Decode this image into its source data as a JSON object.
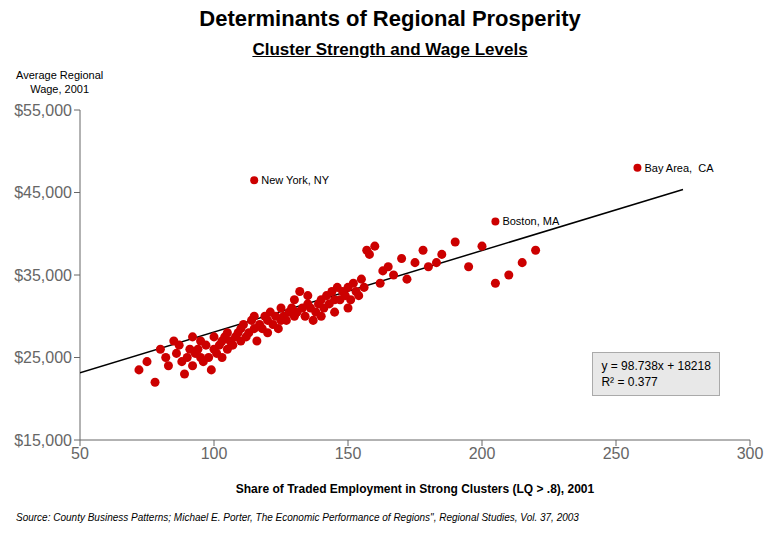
{
  "chart_data": {
    "type": "scatter",
    "title": "Determinants of Regional Prosperity",
    "subtitle": "Cluster Strength and Wage Levels",
    "ylabel": "Average Regional\nWage, 2001",
    "xlabel": "Share of Traded Employment in Strong Clusters (LQ > .8), 2001",
    "source": "Source: County Business Patterns; Michael E. Porter, The Economic Performance of Regions\", Regional Studies, Vol. 37, 2003",
    "xlim": [
      50,
      300
    ],
    "ylim": [
      15000,
      55000
    ],
    "xticks": [
      50,
      100,
      150,
      200,
      250,
      300
    ],
    "yticks": [
      {
        "value": 15000,
        "label": "$15,000"
      },
      {
        "value": 25000,
        "label": "$25,000"
      },
      {
        "value": 35000,
        "label": "$35,000"
      },
      {
        "value": 45000,
        "label": "$45,000"
      },
      {
        "value": 55000,
        "label": "$55,000"
      }
    ],
    "grid": false,
    "series": [
      {
        "type": "scatter",
        "color": "#cc0000",
        "x": [
          72,
          75,
          78,
          80,
          82,
          83,
          85,
          86,
          87,
          88,
          89,
          90,
          91,
          92,
          92,
          93,
          94,
          95,
          95,
          96,
          97,
          98,
          99,
          100,
          100,
          101,
          102,
          103,
          103,
          104,
          105,
          105,
          106,
          107,
          108,
          109,
          110,
          110,
          111,
          112,
          113,
          114,
          115,
          115,
          116,
          117,
          118,
          119,
          120,
          120,
          121,
          122,
          123,
          124,
          125,
          125,
          126,
          127,
          128,
          129,
          130,
          130,
          131,
          132,
          133,
          134,
          135,
          135,
          136,
          137,
          138,
          139,
          140,
          140,
          141,
          142,
          143,
          144,
          145,
          145,
          146,
          147,
          148,
          149,
          150,
          150,
          151,
          152,
          153,
          154,
          155,
          156,
          157,
          158,
          160,
          162,
          163,
          165,
          167,
          170,
          172,
          175,
          178,
          180,
          183,
          185,
          190,
          195,
          200,
          205,
          210,
          215,
          220
        ],
        "values": [
          23500,
          24500,
          22000,
          26000,
          25000,
          24000,
          27000,
          25500,
          26500,
          24500,
          23000,
          25000,
          26000,
          24000,
          27500,
          25500,
          26000,
          25000,
          27000,
          24500,
          26500,
          25000,
          23500,
          26000,
          27500,
          25500,
          26500,
          27000,
          25000,
          27500,
          26000,
          28000,
          27000,
          26500,
          27500,
          28000,
          27000,
          28500,
          29000,
          27500,
          28000,
          29500,
          28500,
          30000,
          27000,
          29000,
          28500,
          30000,
          28000,
          29500,
          30500,
          29000,
          30000,
          28500,
          29500,
          31000,
          30000,
          29500,
          30500,
          31000,
          30000,
          32000,
          30500,
          33000,
          31000,
          30000,
          31500,
          32500,
          31000,
          29500,
          30500,
          31500,
          30000,
          32000,
          31000,
          32500,
          31500,
          33000,
          32000,
          30500,
          33500,
          32000,
          33000,
          32500,
          31000,
          33500,
          32000,
          34000,
          33000,
          32500,
          34500,
          33500,
          38000,
          37500,
          38500,
          34000,
          35500,
          36000,
          35000,
          37000,
          34500,
          36500,
          38000,
          36000,
          36500,
          37500,
          39000,
          36000,
          38500,
          34000,
          35000,
          36500,
          38000
        ]
      },
      {
        "type": "line",
        "color": "#000000",
        "x": [
          50,
          275
        ],
        "values": [
          23154.9,
          45370.95
        ]
      }
    ],
    "annotations": [
      {
        "x": 115,
        "y": 46500,
        "text": "New York, NY"
      },
      {
        "x": 258,
        "y": 48000,
        "text": "Bay Area,  CA"
      },
      {
        "x": 205,
        "y": 41500,
        "text": "Boston, MA"
      }
    ],
    "equation": [
      "y = 98.738x + 18218",
      "R² = 0.377"
    ]
  }
}
